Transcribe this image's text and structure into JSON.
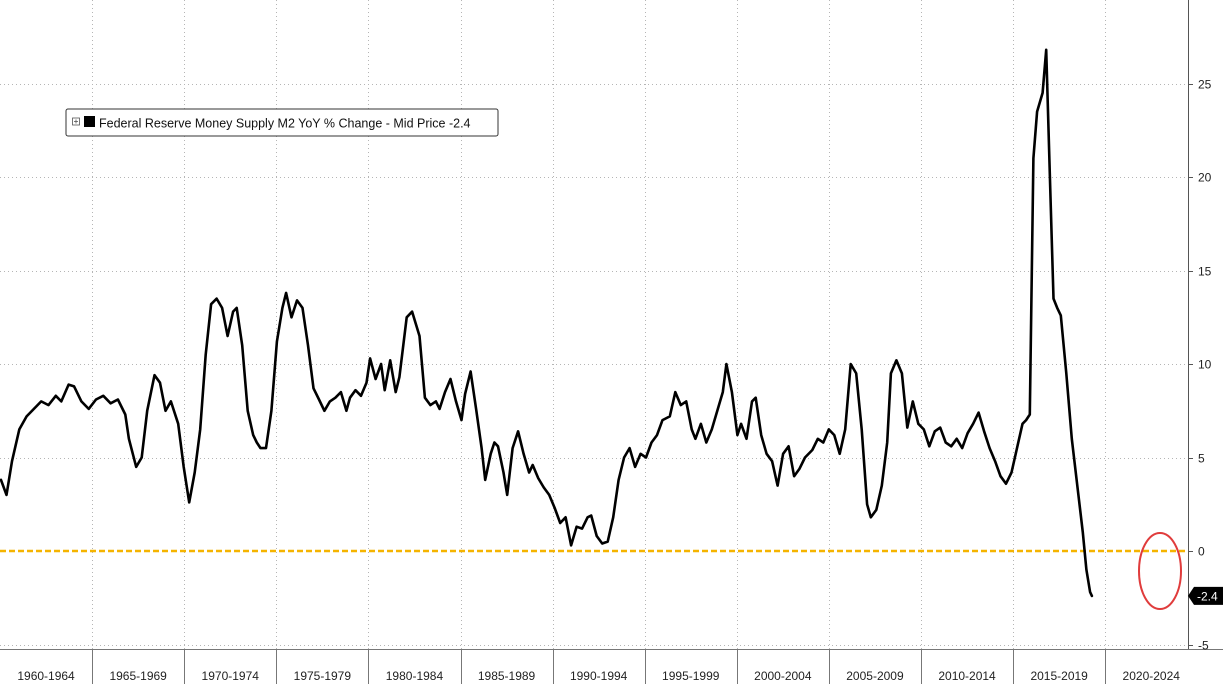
{
  "chart_data": {
    "type": "line",
    "title": "",
    "xlabel": "",
    "ylabel": "",
    "x_range": [
      1960,
      2023.7
    ],
    "ylim": [
      -5,
      28.5
    ],
    "y_ticks": [
      -5,
      0,
      5,
      10,
      15,
      20,
      25
    ],
    "y_axis_position": "right",
    "grid": true,
    "legend_placement": "top-left",
    "x_categories": [
      "1960-1964",
      "1965-1969",
      "1970-1974",
      "1975-1979",
      "1980-1984",
      "1985-1989",
      "1990-1994",
      "1995-1999",
      "2000-2004",
      "2005-2009",
      "2010-2014",
      "2015-2019",
      "2020-2024"
    ],
    "series": [
      {
        "name": "Federal Reserve Money Supply M2 YoY % Change - Mid Price",
        "last_value": "-2.4",
        "color": "#000000",
        "points": [
          [
            1960.0,
            3.8
          ],
          [
            1960.3,
            3.0
          ],
          [
            1960.6,
            4.8
          ],
          [
            1961.0,
            6.5
          ],
          [
            1961.4,
            7.2
          ],
          [
            1961.8,
            7.6
          ],
          [
            1962.2,
            8.0
          ],
          [
            1962.6,
            7.8
          ],
          [
            1963.0,
            8.3
          ],
          [
            1963.3,
            8.0
          ],
          [
            1963.7,
            8.9
          ],
          [
            1964.0,
            8.8
          ],
          [
            1964.4,
            8.0
          ],
          [
            1964.8,
            7.6
          ],
          [
            1965.2,
            8.1
          ],
          [
            1965.6,
            8.3
          ],
          [
            1966.0,
            7.9
          ],
          [
            1966.4,
            8.1
          ],
          [
            1966.8,
            7.3
          ],
          [
            1967.0,
            6.0
          ],
          [
            1967.4,
            4.5
          ],
          [
            1967.7,
            5.0
          ],
          [
            1968.0,
            7.5
          ],
          [
            1968.4,
            9.4
          ],
          [
            1968.7,
            9.0
          ],
          [
            1969.0,
            7.5
          ],
          [
            1969.3,
            8.0
          ],
          [
            1969.7,
            6.8
          ],
          [
            1970.0,
            4.5
          ],
          [
            1970.3,
            2.6
          ],
          [
            1970.6,
            4.2
          ],
          [
            1970.9,
            6.5
          ],
          [
            1971.2,
            10.5
          ],
          [
            1971.5,
            13.2
          ],
          [
            1971.8,
            13.5
          ],
          [
            1972.1,
            13.0
          ],
          [
            1972.4,
            11.5
          ],
          [
            1972.7,
            12.8
          ],
          [
            1972.9,
            13.0
          ],
          [
            1973.2,
            11.0
          ],
          [
            1973.5,
            7.5
          ],
          [
            1973.8,
            6.2
          ],
          [
            1974.0,
            5.8
          ],
          [
            1974.2,
            5.5
          ],
          [
            1974.5,
            5.5
          ],
          [
            1974.8,
            7.5
          ],
          [
            1975.1,
            11.2
          ],
          [
            1975.4,
            13.0
          ],
          [
            1975.6,
            13.8
          ],
          [
            1975.9,
            12.5
          ],
          [
            1976.2,
            13.4
          ],
          [
            1976.5,
            13.0
          ],
          [
            1976.8,
            11.0
          ],
          [
            1977.1,
            8.7
          ],
          [
            1977.4,
            8.1
          ],
          [
            1977.7,
            7.5
          ],
          [
            1978.0,
            8.0
          ],
          [
            1978.3,
            8.2
          ],
          [
            1978.6,
            8.5
          ],
          [
            1978.9,
            7.5
          ],
          [
            1979.1,
            8.2
          ],
          [
            1979.4,
            8.6
          ],
          [
            1979.7,
            8.3
          ],
          [
            1980.0,
            9.0
          ],
          [
            1980.2,
            10.3
          ],
          [
            1980.5,
            9.2
          ],
          [
            1980.8,
            10.0
          ],
          [
            1981.0,
            8.6
          ],
          [
            1981.3,
            10.2
          ],
          [
            1981.6,
            8.5
          ],
          [
            1981.8,
            9.3
          ],
          [
            1982.2,
            12.5
          ],
          [
            1982.5,
            12.8
          ],
          [
            1982.9,
            11.5
          ],
          [
            1983.2,
            8.2
          ],
          [
            1983.5,
            7.8
          ],
          [
            1983.8,
            8.0
          ],
          [
            1984.0,
            7.6
          ],
          [
            1984.3,
            8.5
          ],
          [
            1984.6,
            9.2
          ],
          [
            1984.9,
            8.0
          ],
          [
            1985.2,
            7.0
          ],
          [
            1985.4,
            8.4
          ],
          [
            1985.7,
            9.6
          ],
          [
            1986.0,
            7.6
          ],
          [
            1986.3,
            5.5
          ],
          [
            1986.5,
            3.8
          ],
          [
            1986.8,
            5.2
          ],
          [
            1987.0,
            5.8
          ],
          [
            1987.2,
            5.6
          ],
          [
            1987.5,
            4.2
          ],
          [
            1987.7,
            3.0
          ],
          [
            1988.0,
            5.5
          ],
          [
            1988.3,
            6.4
          ],
          [
            1988.6,
            5.2
          ],
          [
            1988.9,
            4.2
          ],
          [
            1989.1,
            4.6
          ],
          [
            1989.4,
            3.9
          ],
          [
            1989.7,
            3.4
          ],
          [
            1990.0,
            3.0
          ],
          [
            1990.3,
            2.3
          ],
          [
            1990.6,
            1.5
          ],
          [
            1990.9,
            1.8
          ],
          [
            1991.2,
            0.3
          ],
          [
            1991.5,
            1.3
          ],
          [
            1991.8,
            1.2
          ],
          [
            1992.1,
            1.8
          ],
          [
            1992.3,
            1.9
          ],
          [
            1992.6,
            0.8
          ],
          [
            1992.9,
            0.4
          ],
          [
            1993.2,
            0.5
          ],
          [
            1993.5,
            1.8
          ],
          [
            1993.8,
            3.8
          ],
          [
            1994.1,
            5.0
          ],
          [
            1994.4,
            5.5
          ],
          [
            1994.7,
            4.5
          ],
          [
            1995.0,
            5.2
          ],
          [
            1995.3,
            5.0
          ],
          [
            1995.6,
            5.8
          ],
          [
            1995.9,
            6.2
          ],
          [
            1996.2,
            7.0
          ],
          [
            1996.6,
            7.2
          ],
          [
            1996.9,
            8.5
          ],
          [
            1997.2,
            7.8
          ],
          [
            1997.5,
            8.0
          ],
          [
            1997.8,
            6.5
          ],
          [
            1998.0,
            6.0
          ],
          [
            1998.3,
            6.8
          ],
          [
            1998.6,
            5.8
          ],
          [
            1998.9,
            6.5
          ],
          [
            1999.2,
            7.5
          ],
          [
            1999.5,
            8.5
          ],
          [
            1999.7,
            10.0
          ],
          [
            2000.0,
            8.5
          ],
          [
            2000.3,
            6.2
          ],
          [
            2000.5,
            6.8
          ],
          [
            2000.8,
            6.0
          ],
          [
            2001.1,
            8.0
          ],
          [
            2001.3,
            8.2
          ],
          [
            2001.6,
            6.2
          ],
          [
            2001.9,
            5.2
          ],
          [
            2002.2,
            4.8
          ],
          [
            2002.5,
            3.5
          ],
          [
            2002.8,
            5.2
          ],
          [
            2003.1,
            5.6
          ],
          [
            2003.4,
            4.0
          ],
          [
            2003.7,
            4.4
          ],
          [
            2004.0,
            5.0
          ],
          [
            2004.4,
            5.4
          ],
          [
            2004.7,
            6.0
          ],
          [
            2005.0,
            5.8
          ],
          [
            2005.3,
            6.5
          ],
          [
            2005.6,
            6.2
          ],
          [
            2005.9,
            5.2
          ],
          [
            2006.2,
            6.5
          ],
          [
            2006.5,
            10.0
          ],
          [
            2006.8,
            9.5
          ],
          [
            2007.1,
            6.5
          ],
          [
            2007.4,
            2.5
          ],
          [
            2007.6,
            1.8
          ],
          [
            2007.9,
            2.2
          ],
          [
            2008.2,
            3.5
          ],
          [
            2008.5,
            5.8
          ],
          [
            2008.7,
            9.5
          ],
          [
            2009.0,
            10.2
          ],
          [
            2009.3,
            9.5
          ],
          [
            2009.6,
            6.6
          ],
          [
            2009.9,
            8.0
          ],
          [
            2010.2,
            6.8
          ],
          [
            2010.5,
            6.5
          ],
          [
            2010.8,
            5.6
          ],
          [
            2011.1,
            6.4
          ],
          [
            2011.4,
            6.6
          ],
          [
            2011.7,
            5.8
          ],
          [
            2012.0,
            5.6
          ],
          [
            2012.3,
            6.0
          ],
          [
            2012.6,
            5.5
          ],
          [
            2012.9,
            6.3
          ],
          [
            2013.2,
            6.8
          ],
          [
            2013.5,
            7.4
          ],
          [
            2013.8,
            6.4
          ],
          [
            2014.1,
            5.5
          ],
          [
            2014.4,
            4.8
          ],
          [
            2014.7,
            4.0
          ],
          [
            2015.0,
            3.6
          ],
          [
            2015.3,
            4.2
          ],
          [
            2015.6,
            5.5
          ],
          [
            2015.9,
            6.8
          ],
          [
            2016.1,
            7.0
          ],
          [
            2016.3,
            7.3
          ],
          [
            2016.5,
            21.0
          ],
          [
            2016.7,
            23.5
          ],
          [
            2017.0,
            24.5
          ],
          [
            2017.2,
            26.8
          ],
          [
            2017.4,
            20.0
          ],
          [
            2017.6,
            13.5
          ],
          [
            2017.8,
            13.0
          ],
          [
            2018.0,
            12.6
          ],
          [
            2018.3,
            9.5
          ],
          [
            2018.6,
            6.0
          ],
          [
            2018.9,
            3.5
          ],
          [
            2019.2,
            1.0
          ],
          [
            2019.4,
            -1.0
          ],
          [
            2019.6,
            -2.2
          ],
          [
            2019.7,
            -2.4
          ]
        ]
      }
    ],
    "reference_line": {
      "value": 0,
      "color": "#f5b400",
      "style": "dashed"
    }
  }
}
